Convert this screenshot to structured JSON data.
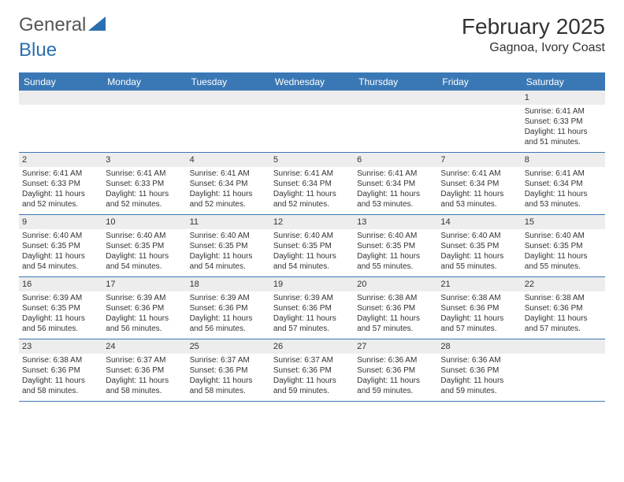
{
  "logo": {
    "word1": "General",
    "word2": "Blue"
  },
  "title": "February 2025",
  "location": "Gagnoa, Ivory Coast",
  "colors": {
    "header_bg": "#3a78b5",
    "header_text": "#ffffff",
    "num_bg": "#ededed",
    "grid_border": "#3a78b5",
    "logo_blue": "#2a6fb0",
    "logo_text": "#555555",
    "body_text": "#333333"
  },
  "day_names": [
    "Sunday",
    "Monday",
    "Tuesday",
    "Wednesday",
    "Thursday",
    "Friday",
    "Saturday"
  ],
  "weeks": [
    [
      {
        "n": "",
        "sr": "",
        "ss": "",
        "dl": ""
      },
      {
        "n": "",
        "sr": "",
        "ss": "",
        "dl": ""
      },
      {
        "n": "",
        "sr": "",
        "ss": "",
        "dl": ""
      },
      {
        "n": "",
        "sr": "",
        "ss": "",
        "dl": ""
      },
      {
        "n": "",
        "sr": "",
        "ss": "",
        "dl": ""
      },
      {
        "n": "",
        "sr": "",
        "ss": "",
        "dl": ""
      },
      {
        "n": "1",
        "sr": "Sunrise: 6:41 AM",
        "ss": "Sunset: 6:33 PM",
        "dl": "Daylight: 11 hours and 51 minutes."
      }
    ],
    [
      {
        "n": "2",
        "sr": "Sunrise: 6:41 AM",
        "ss": "Sunset: 6:33 PM",
        "dl": "Daylight: 11 hours and 52 minutes."
      },
      {
        "n": "3",
        "sr": "Sunrise: 6:41 AM",
        "ss": "Sunset: 6:33 PM",
        "dl": "Daylight: 11 hours and 52 minutes."
      },
      {
        "n": "4",
        "sr": "Sunrise: 6:41 AM",
        "ss": "Sunset: 6:34 PM",
        "dl": "Daylight: 11 hours and 52 minutes."
      },
      {
        "n": "5",
        "sr": "Sunrise: 6:41 AM",
        "ss": "Sunset: 6:34 PM",
        "dl": "Daylight: 11 hours and 52 minutes."
      },
      {
        "n": "6",
        "sr": "Sunrise: 6:41 AM",
        "ss": "Sunset: 6:34 PM",
        "dl": "Daylight: 11 hours and 53 minutes."
      },
      {
        "n": "7",
        "sr": "Sunrise: 6:41 AM",
        "ss": "Sunset: 6:34 PM",
        "dl": "Daylight: 11 hours and 53 minutes."
      },
      {
        "n": "8",
        "sr": "Sunrise: 6:41 AM",
        "ss": "Sunset: 6:34 PM",
        "dl": "Daylight: 11 hours and 53 minutes."
      }
    ],
    [
      {
        "n": "9",
        "sr": "Sunrise: 6:40 AM",
        "ss": "Sunset: 6:35 PM",
        "dl": "Daylight: 11 hours and 54 minutes."
      },
      {
        "n": "10",
        "sr": "Sunrise: 6:40 AM",
        "ss": "Sunset: 6:35 PM",
        "dl": "Daylight: 11 hours and 54 minutes."
      },
      {
        "n": "11",
        "sr": "Sunrise: 6:40 AM",
        "ss": "Sunset: 6:35 PM",
        "dl": "Daylight: 11 hours and 54 minutes."
      },
      {
        "n": "12",
        "sr": "Sunrise: 6:40 AM",
        "ss": "Sunset: 6:35 PM",
        "dl": "Daylight: 11 hours and 54 minutes."
      },
      {
        "n": "13",
        "sr": "Sunrise: 6:40 AM",
        "ss": "Sunset: 6:35 PM",
        "dl": "Daylight: 11 hours and 55 minutes."
      },
      {
        "n": "14",
        "sr": "Sunrise: 6:40 AM",
        "ss": "Sunset: 6:35 PM",
        "dl": "Daylight: 11 hours and 55 minutes."
      },
      {
        "n": "15",
        "sr": "Sunrise: 6:40 AM",
        "ss": "Sunset: 6:35 PM",
        "dl": "Daylight: 11 hours and 55 minutes."
      }
    ],
    [
      {
        "n": "16",
        "sr": "Sunrise: 6:39 AM",
        "ss": "Sunset: 6:35 PM",
        "dl": "Daylight: 11 hours and 56 minutes."
      },
      {
        "n": "17",
        "sr": "Sunrise: 6:39 AM",
        "ss": "Sunset: 6:36 PM",
        "dl": "Daylight: 11 hours and 56 minutes."
      },
      {
        "n": "18",
        "sr": "Sunrise: 6:39 AM",
        "ss": "Sunset: 6:36 PM",
        "dl": "Daylight: 11 hours and 56 minutes."
      },
      {
        "n": "19",
        "sr": "Sunrise: 6:39 AM",
        "ss": "Sunset: 6:36 PM",
        "dl": "Daylight: 11 hours and 57 minutes."
      },
      {
        "n": "20",
        "sr": "Sunrise: 6:38 AM",
        "ss": "Sunset: 6:36 PM",
        "dl": "Daylight: 11 hours and 57 minutes."
      },
      {
        "n": "21",
        "sr": "Sunrise: 6:38 AM",
        "ss": "Sunset: 6:36 PM",
        "dl": "Daylight: 11 hours and 57 minutes."
      },
      {
        "n": "22",
        "sr": "Sunrise: 6:38 AM",
        "ss": "Sunset: 6:36 PM",
        "dl": "Daylight: 11 hours and 57 minutes."
      }
    ],
    [
      {
        "n": "23",
        "sr": "Sunrise: 6:38 AM",
        "ss": "Sunset: 6:36 PM",
        "dl": "Daylight: 11 hours and 58 minutes."
      },
      {
        "n": "24",
        "sr": "Sunrise: 6:37 AM",
        "ss": "Sunset: 6:36 PM",
        "dl": "Daylight: 11 hours and 58 minutes."
      },
      {
        "n": "25",
        "sr": "Sunrise: 6:37 AM",
        "ss": "Sunset: 6:36 PM",
        "dl": "Daylight: 11 hours and 58 minutes."
      },
      {
        "n": "26",
        "sr": "Sunrise: 6:37 AM",
        "ss": "Sunset: 6:36 PM",
        "dl": "Daylight: 11 hours and 59 minutes."
      },
      {
        "n": "27",
        "sr": "Sunrise: 6:36 AM",
        "ss": "Sunset: 6:36 PM",
        "dl": "Daylight: 11 hours and 59 minutes."
      },
      {
        "n": "28",
        "sr": "Sunrise: 6:36 AM",
        "ss": "Sunset: 6:36 PM",
        "dl": "Daylight: 11 hours and 59 minutes."
      },
      {
        "n": "",
        "sr": "",
        "ss": "",
        "dl": ""
      }
    ]
  ]
}
